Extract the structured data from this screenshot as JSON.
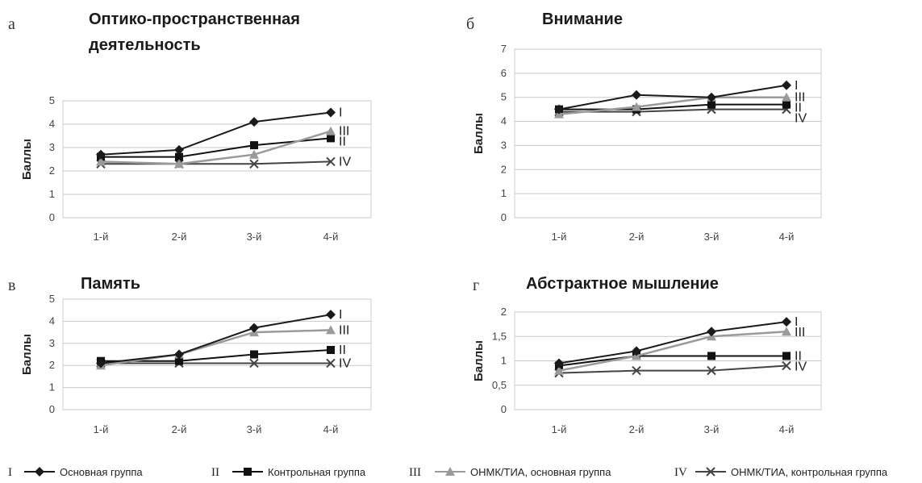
{
  "styles": {
    "I": {
      "color": "#1a1a1a",
      "marker": "diamond"
    },
    "II": {
      "color": "#111111",
      "marker": "square"
    },
    "III": {
      "color": "#9a9a9a",
      "marker": "triangle"
    },
    "IV": {
      "color": "#444444",
      "marker": "x"
    }
  },
  "chart_data": [
    {
      "type": "line",
      "letter": "а",
      "title": [
        "Оптико-пространственная",
        "деятельность"
      ],
      "ylabel": "Баллы",
      "categories": [
        "1-й",
        "2-й",
        "3-й",
        "4-й"
      ],
      "ylim": [
        0,
        5
      ],
      "yticks": [
        "0",
        "1",
        "2",
        "3",
        "4",
        "5"
      ],
      "grid": true,
      "series": [
        {
          "name": "I",
          "values": [
            2.7,
            2.9,
            4.1,
            4.5
          ]
        },
        {
          "name": "II",
          "values": [
            2.6,
            2.6,
            3.1,
            3.4
          ]
        },
        {
          "name": "III",
          "values": [
            2.4,
            2.3,
            2.7,
            3.7
          ]
        },
        {
          "name": "IV",
          "values": [
            2.3,
            2.3,
            2.3,
            2.4
          ]
        }
      ]
    },
    {
      "type": "line",
      "letter": "б",
      "title": [
        "Внимание"
      ],
      "ylabel": "Баллы",
      "categories": [
        "1-й",
        "2-й",
        "3-й",
        "4-й"
      ],
      "ylim": [
        0,
        7
      ],
      "yticks": [
        "0",
        "1",
        "2",
        "3",
        "4",
        "5",
        "6",
        "7"
      ],
      "grid": true,
      "series": [
        {
          "name": "I",
          "values": [
            4.5,
            5.1,
            5.0,
            5.5
          ]
        },
        {
          "name": "II",
          "values": [
            4.5,
            4.5,
            4.7,
            4.7
          ]
        },
        {
          "name": "III",
          "values": [
            4.3,
            4.6,
            5.0,
            5.0
          ]
        },
        {
          "name": "IV",
          "values": [
            4.4,
            4.4,
            4.5,
            4.5
          ]
        }
      ]
    },
    {
      "type": "line",
      "letter": "в",
      "title": [
        "Память"
      ],
      "ylabel": "Баллы",
      "categories": [
        "1-й",
        "2-й",
        "3-й",
        "4-й"
      ],
      "ylim": [
        0,
        5
      ],
      "yticks": [
        "0",
        "1",
        "2",
        "3",
        "4",
        "5"
      ],
      "grid": true,
      "series": [
        {
          "name": "I",
          "values": [
            2.1,
            2.5,
            3.7,
            4.3
          ]
        },
        {
          "name": "II",
          "values": [
            2.2,
            2.2,
            2.5,
            2.7
          ]
        },
        {
          "name": "III",
          "values": [
            2.0,
            2.5,
            3.5,
            3.6
          ]
        },
        {
          "name": "IV",
          "values": [
            2.1,
            2.1,
            2.1,
            2.1
          ]
        }
      ]
    },
    {
      "type": "line",
      "letter": "г",
      "title": [
        "Абстрактное мышление"
      ],
      "ylabel": "Баллы",
      "categories": [
        "1-й",
        "2-й",
        "3-й",
        "4-й"
      ],
      "ylim": [
        0,
        2
      ],
      "yticks": [
        "0",
        "0,5",
        "1",
        "1,5",
        "2"
      ],
      "grid": true,
      "series": [
        {
          "name": "I",
          "values": [
            0.95,
            1.2,
            1.6,
            1.8
          ]
        },
        {
          "name": "II",
          "values": [
            0.9,
            1.1,
            1.1,
            1.1
          ]
        },
        {
          "name": "III",
          "values": [
            0.8,
            1.1,
            1.5,
            1.6
          ]
        },
        {
          "name": "IV",
          "values": [
            0.75,
            0.8,
            0.8,
            0.9
          ]
        }
      ]
    }
  ],
  "legend": [
    {
      "num": "I",
      "series": "I",
      "label": "Основная группа"
    },
    {
      "num": "II",
      "series": "II",
      "label": "Контрольная группа"
    },
    {
      "num": "III",
      "series": "III",
      "label": "ОНМК/ТИА, основная  группа"
    },
    {
      "num": "IV",
      "series": "IV",
      "label": "ОНМК/ТИА, контрольная группа"
    }
  ]
}
